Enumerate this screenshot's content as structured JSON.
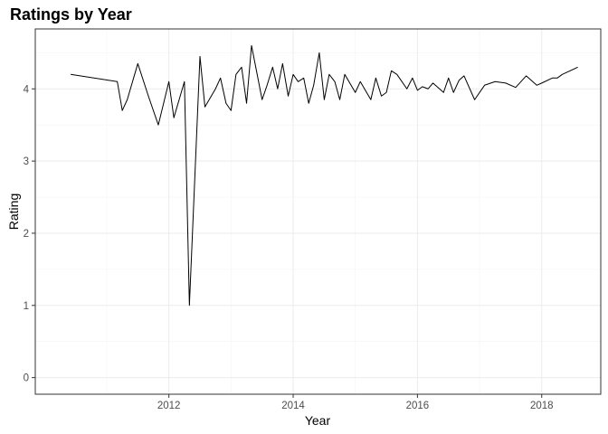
{
  "chart_data": {
    "type": "line",
    "title": "Ratings by Year",
    "xlabel": "Year",
    "ylabel": "Rating",
    "x_ticks": [
      2012,
      2014,
      2016,
      2018
    ],
    "y_ticks": [
      0,
      1,
      2,
      3,
      4
    ],
    "xlim": [
      2009.85,
      2018.95
    ],
    "ylim": [
      -0.23,
      4.83
    ],
    "grid": true,
    "colors": {
      "line": "#000000",
      "grid": "#ebebeb",
      "border": "#333333"
    },
    "series": [
      {
        "x": [
          2010.42,
          2011.17,
          2011.25,
          2011.33,
          2011.5,
          2011.67,
          2011.83,
          2012.0,
          2012.08,
          2012.25,
          2012.33,
          2012.5,
          2012.58,
          2012.75,
          2012.83,
          2012.92,
          2013.0,
          2013.08,
          2013.17,
          2013.25,
          2013.33,
          2013.5,
          2013.58,
          2013.67,
          2013.75,
          2013.83,
          2013.92,
          2014.0,
          2014.08,
          2014.17,
          2014.25,
          2014.33,
          2014.42,
          2014.5,
          2014.58,
          2014.67,
          2014.75,
          2014.83,
          2015.0,
          2015.08,
          2015.25,
          2015.33,
          2015.42,
          2015.5,
          2015.58,
          2015.67,
          2015.83,
          2015.92,
          2016.0,
          2016.08,
          2016.17,
          2016.25,
          2016.42,
          2016.5,
          2016.58,
          2016.67,
          2016.75,
          2016.92,
          2017.08,
          2017.25,
          2017.42,
          2017.58,
          2017.75,
          2017.92,
          2018.0,
          2018.17,
          2018.25,
          2018.33,
          2018.58
        ],
        "values": [
          4.2,
          4.1,
          3.7,
          3.85,
          4.35,
          3.9,
          3.5,
          4.1,
          3.6,
          4.1,
          1.0,
          4.45,
          3.75,
          4.0,
          4.15,
          3.8,
          3.7,
          4.2,
          4.3,
          3.8,
          4.6,
          3.85,
          4.05,
          4.3,
          4.0,
          4.35,
          3.9,
          4.2,
          4.1,
          4.15,
          3.8,
          4.05,
          4.5,
          3.85,
          4.2,
          4.1,
          3.85,
          4.2,
          3.95,
          4.1,
          3.85,
          4.15,
          3.9,
          3.95,
          4.25,
          4.2,
          4.0,
          4.15,
          3.98,
          4.03,
          4.0,
          4.08,
          3.95,
          4.15,
          3.95,
          4.12,
          4.18,
          3.85,
          4.05,
          4.1,
          4.08,
          4.02,
          4.18,
          4.05,
          4.08,
          4.15,
          4.15,
          4.2,
          4.3
        ]
      }
    ]
  }
}
